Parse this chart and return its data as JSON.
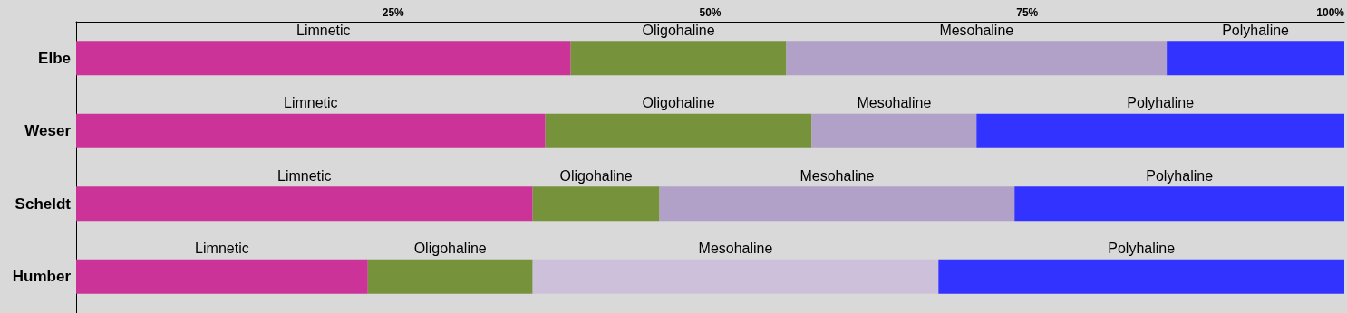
{
  "chart_data": {
    "type": "bar",
    "orientation": "horizontal",
    "stacked": true,
    "categories": [
      "Elbe",
      "Weser",
      "Scheldt",
      "Humber"
    ],
    "series": [
      {
        "name": "Limnetic",
        "color": "#cc3399",
        "values": [
          39,
          37,
          36,
          23
        ]
      },
      {
        "name": "Oligohaline",
        "color": "#76933c",
        "values": [
          17,
          21,
          10,
          13
        ]
      },
      {
        "name": "Mesohaline",
        "color": "#b1a0c7",
        "colors": [
          "#b1a0c7",
          "#b1a0c7",
          "#b1a0c7",
          "#ccc0da"
        ],
        "values": [
          30,
          13,
          28,
          32
        ]
      },
      {
        "name": "Polyhaline",
        "color": "#3333ff",
        "values": [
          14,
          29,
          26,
          32
        ]
      }
    ],
    "xlim": [
      0,
      100
    ],
    "xticks": [
      {
        "value": 25,
        "label": "25%"
      },
      {
        "value": 50,
        "label": "50%"
      },
      {
        "value": 75,
        "label": "75%"
      },
      {
        "value": 100,
        "label": "100%"
      }
    ],
    "legend": false,
    "grid": false
  }
}
